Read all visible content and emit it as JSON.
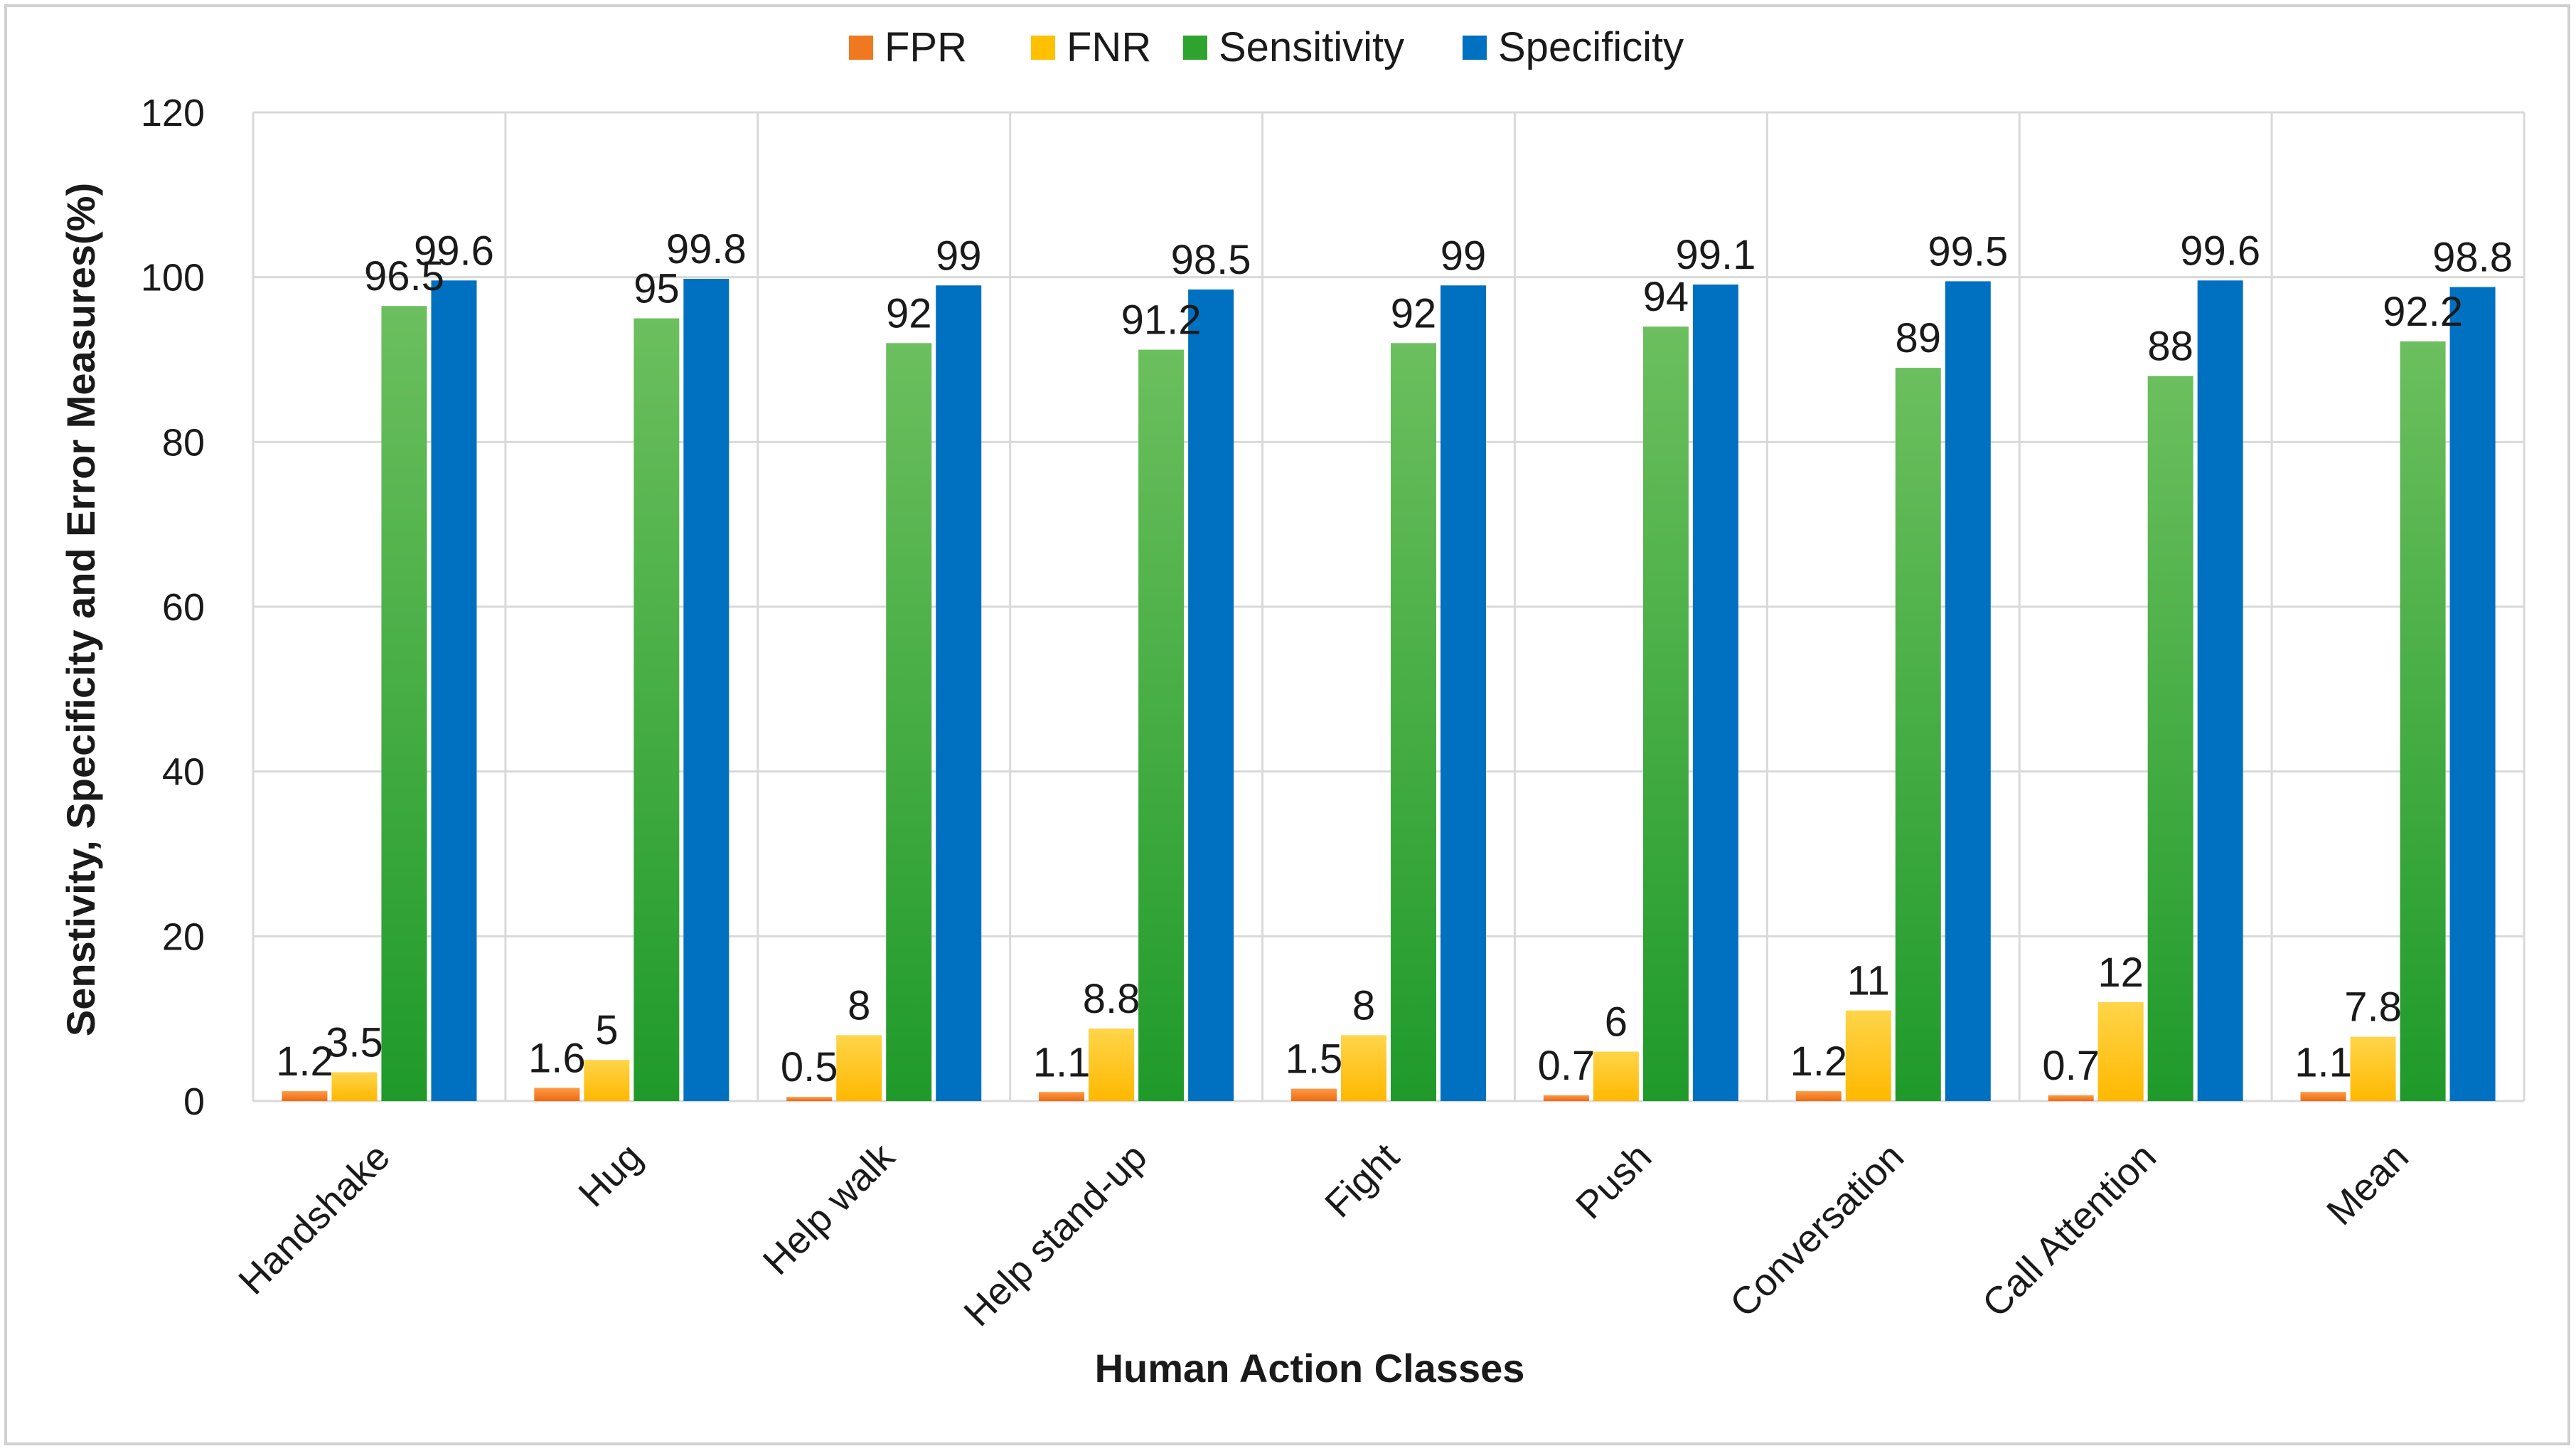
{
  "chart_data": {
    "type": "bar",
    "title": "",
    "xlabel": "Human Action Classes",
    "ylabel": "Senstivity, Specificity and Error Measures(%)",
    "ylim": [
      0,
      120
    ],
    "yticks": [
      "0",
      "20",
      "40",
      "60",
      "80",
      "100",
      "120"
    ],
    "grid": true,
    "legend_position": "top",
    "categories": [
      "Handshake",
      "Hug",
      "Help walk",
      "Help stand-up",
      "Fight",
      "Push",
      "Conversation",
      "Call Attention",
      "Mean"
    ],
    "series": [
      {
        "name": "FPR",
        "color": "#f07820",
        "values": [
          1.2,
          1.6,
          0.5,
          1.1,
          1.5,
          0.7,
          1.2,
          0.7,
          1.1
        ],
        "labels": [
          "1.2",
          "1.6",
          "0.5",
          "1.1",
          "1.5",
          "0.7",
          "1.2",
          "0.7",
          "1.1"
        ]
      },
      {
        "name": "FNR",
        "color": "#ffc000",
        "values": [
          3.5,
          5,
          8,
          8.8,
          8,
          6,
          11,
          12,
          7.8
        ],
        "labels": [
          "3.5",
          "5",
          "8",
          "8.8",
          "8",
          "6",
          "11",
          "12",
          "7.8"
        ]
      },
      {
        "name": "Sensitivity",
        "color": "#2ea32e",
        "values": [
          96.5,
          95,
          92,
          91.2,
          92,
          94,
          89,
          88,
          92.2
        ],
        "labels": [
          "96.5",
          "95",
          "92",
          "91.2",
          "92",
          "94",
          "89",
          "88",
          "92.2"
        ]
      },
      {
        "name": "Specificity",
        "color": "#0070c0",
        "values": [
          99.6,
          99.8,
          99,
          98.5,
          99,
          99.1,
          99.5,
          99.6,
          98.8
        ],
        "labels": [
          "99.6",
          "99.8",
          "99",
          "98.5",
          "99",
          "99.1",
          "99.5",
          "99.6",
          "98.8"
        ]
      }
    ]
  }
}
